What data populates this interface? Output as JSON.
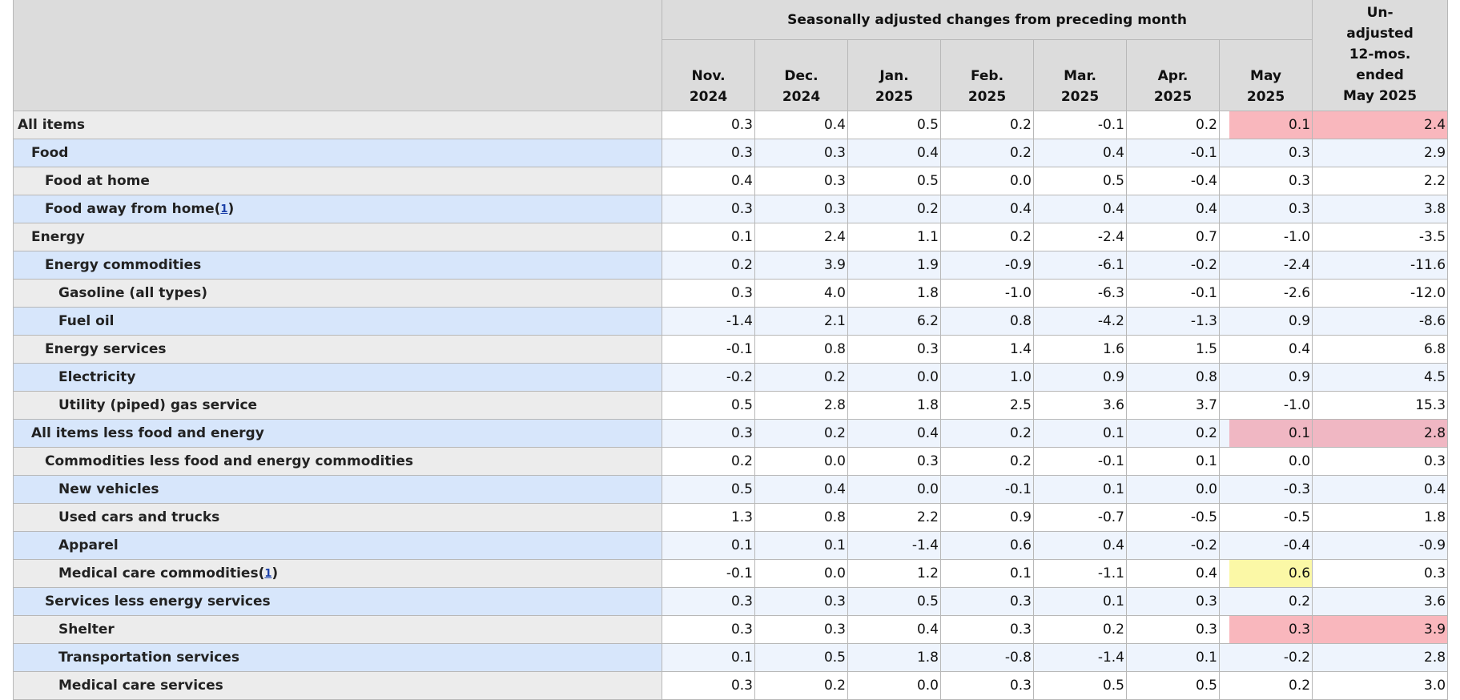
{
  "header": {
    "group_title": "Seasonally adjusted changes from preceding month",
    "months": [
      {
        "line1": "Nov.",
        "line2": "2024"
      },
      {
        "line1": "Dec.",
        "line2": "2024"
      },
      {
        "line1": "Jan.",
        "line2": "2025"
      },
      {
        "line1": "Feb.",
        "line2": "2025"
      },
      {
        "line1": "Mar.",
        "line2": "2025"
      },
      {
        "line1": "Apr.",
        "line2": "2025"
      },
      {
        "line1": "May",
        "line2": "2025"
      }
    ],
    "last_col": [
      "Un-",
      "adjusted",
      "12-mos.",
      "ended",
      "May 2025"
    ]
  },
  "rows": [
    {
      "label": "All items",
      "fn": "",
      "values": [
        "0.3",
        "0.4",
        "0.5",
        "0.2",
        "-0.1",
        "0.2",
        "0.1",
        "2.4"
      ]
    },
    {
      "label": "Food",
      "fn": "",
      "values": [
        "0.3",
        "0.3",
        "0.4",
        "0.2",
        "0.4",
        "-0.1",
        "0.3",
        "2.9"
      ]
    },
    {
      "label": "Food at home",
      "fn": "",
      "values": [
        "0.4",
        "0.3",
        "0.5",
        "0.0",
        "0.5",
        "-0.4",
        "0.3",
        "2.2"
      ]
    },
    {
      "label": "Food away from home",
      "fn": "1",
      "values": [
        "0.3",
        "0.3",
        "0.2",
        "0.4",
        "0.4",
        "0.4",
        "0.3",
        "3.8"
      ]
    },
    {
      "label": "Energy",
      "fn": "",
      "values": [
        "0.1",
        "2.4",
        "1.1",
        "0.2",
        "-2.4",
        "0.7",
        "-1.0",
        "-3.5"
      ]
    },
    {
      "label": "Energy commodities",
      "fn": "",
      "values": [
        "0.2",
        "3.9",
        "1.9",
        "-0.9",
        "-6.1",
        "-0.2",
        "-2.4",
        "-11.6"
      ]
    },
    {
      "label": "Gasoline (all types)",
      "fn": "",
      "values": [
        "0.3",
        "4.0",
        "1.8",
        "-1.0",
        "-6.3",
        "-0.1",
        "-2.6",
        "-12.0"
      ]
    },
    {
      "label": "Fuel oil",
      "fn": "",
      "values": [
        "-1.4",
        "2.1",
        "6.2",
        "0.8",
        "-4.2",
        "-1.3",
        "0.9",
        "-8.6"
      ]
    },
    {
      "label": "Energy services",
      "fn": "",
      "values": [
        "-0.1",
        "0.8",
        "0.3",
        "1.4",
        "1.6",
        "1.5",
        "0.4",
        "6.8"
      ]
    },
    {
      "label": "Electricity",
      "fn": "",
      "values": [
        "-0.2",
        "0.2",
        "0.0",
        "1.0",
        "0.9",
        "0.8",
        "0.9",
        "4.5"
      ]
    },
    {
      "label": "Utility (piped) gas service",
      "fn": "",
      "values": [
        "0.5",
        "2.8",
        "1.8",
        "2.5",
        "3.6",
        "3.7",
        "-1.0",
        "15.3"
      ]
    },
    {
      "label": "All items less food and energy",
      "fn": "",
      "values": [
        "0.3",
        "0.2",
        "0.4",
        "0.2",
        "0.1",
        "0.2",
        "0.1",
        "2.8"
      ]
    },
    {
      "label": "Commodities less food and energy commodities",
      "fn": "",
      "values": [
        "0.2",
        "0.0",
        "0.3",
        "0.2",
        "-0.1",
        "0.1",
        "0.0",
        "0.3"
      ]
    },
    {
      "label": "New vehicles",
      "fn": "",
      "values": [
        "0.5",
        "0.4",
        "0.0",
        "-0.1",
        "0.1",
        "0.0",
        "-0.3",
        "0.4"
      ]
    },
    {
      "label": "Used cars and trucks",
      "fn": "",
      "values": [
        "1.3",
        "0.8",
        "2.2",
        "0.9",
        "-0.7",
        "-0.5",
        "-0.5",
        "1.8"
      ]
    },
    {
      "label": "Apparel",
      "fn": "",
      "values": [
        "0.1",
        "0.1",
        "-1.4",
        "0.6",
        "0.4",
        "-0.2",
        "-0.4",
        "-0.9"
      ]
    },
    {
      "label": "Medical care commodities",
      "fn": "1",
      "values": [
        "-0.1",
        "0.0",
        "1.2",
        "0.1",
        "-1.1",
        "0.4",
        "0.6",
        "0.3"
      ]
    },
    {
      "label": "Services less energy services",
      "fn": "",
      "values": [
        "0.3",
        "0.3",
        "0.5",
        "0.3",
        "0.1",
        "0.3",
        "0.2",
        "3.6"
      ]
    },
    {
      "label": "Shelter",
      "fn": "",
      "values": [
        "0.3",
        "0.3",
        "0.4",
        "0.3",
        "0.2",
        "0.3",
        "0.3",
        "3.9"
      ]
    },
    {
      "label": "Transportation services",
      "fn": "",
      "values": [
        "0.1",
        "0.5",
        "1.8",
        "-0.8",
        "-1.4",
        "0.1",
        "-0.2",
        "2.8"
      ]
    },
    {
      "label": "Medical care services",
      "fn": "",
      "values": [
        "0.3",
        "0.2",
        "0.0",
        "0.3",
        "0.5",
        "0.5",
        "0.2",
        "3.0"
      ]
    }
  ],
  "highlight_colors": {
    "red": "#f9b7bd",
    "yellow": "#fbf8a6"
  }
}
